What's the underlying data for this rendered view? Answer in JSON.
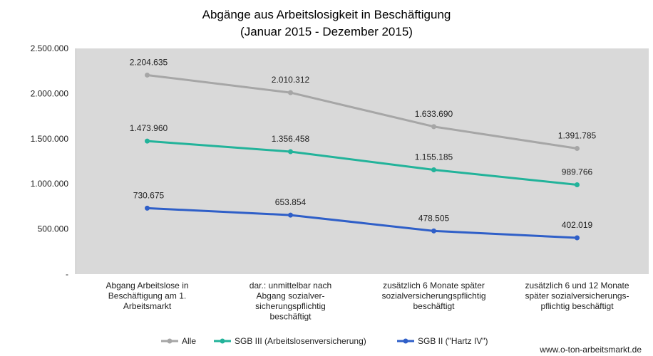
{
  "chart_data": {
    "type": "line",
    "title": "Abgänge aus Arbeitslosigkeit in Beschäftigung",
    "subtitle": "(Januar 2015 - Dezember 2015)",
    "categories": [
      [
        "Abgang Arbeitslose in",
        "Beschäftigung am 1.",
        "Arbeitsmarkt"
      ],
      [
        "dar.: unmittelbar nach",
        "Abgang sozialver-",
        "sicherungspflichtig",
        "beschäftigt"
      ],
      [
        "zusätzlich 6 Monate später",
        "sozialversicherungspflichtig",
        "beschäftigt"
      ],
      [
        "zusätzlich 6 und 12 Monate",
        "später sozialversicherungs-",
        "pflichtig beschäftigt"
      ]
    ],
    "series": [
      {
        "name": "Alle",
        "color": "#a6a6a6",
        "values": [
          2204635,
          2010312,
          1633690,
          1391785
        ],
        "labels": [
          "2.204.635",
          "2.010.312",
          "1.633.690",
          "1.391.785"
        ]
      },
      {
        "name": "SGB III (Arbeitslosenversicherung)",
        "color": "#22b39a",
        "values": [
          1473960,
          1356458,
          1155185,
          989766
        ],
        "labels": [
          "1.473.960",
          "1.356.458",
          "1.155.185",
          "989.766"
        ]
      },
      {
        "name": "SGB II (\"Hartz IV\")",
        "color": "#2f5fc8",
        "values": [
          730675,
          653854,
          478505,
          402019
        ],
        "labels": [
          "730.675",
          "653.854",
          "478.505",
          "402.019"
        ]
      }
    ],
    "ylim": [
      0,
      2500000
    ],
    "yticks": [
      0,
      500000,
      1000000,
      1500000,
      2000000,
      2500000
    ],
    "ytick_labels": [
      "-",
      "500.000",
      "1.000.000",
      "1.500.000",
      "2.000.000",
      "2.500.000"
    ],
    "grid": false,
    "legend": "bottom",
    "plot_background": "#d9d9d9"
  },
  "source": "www.o-ton-arbeitsmarkt.de"
}
